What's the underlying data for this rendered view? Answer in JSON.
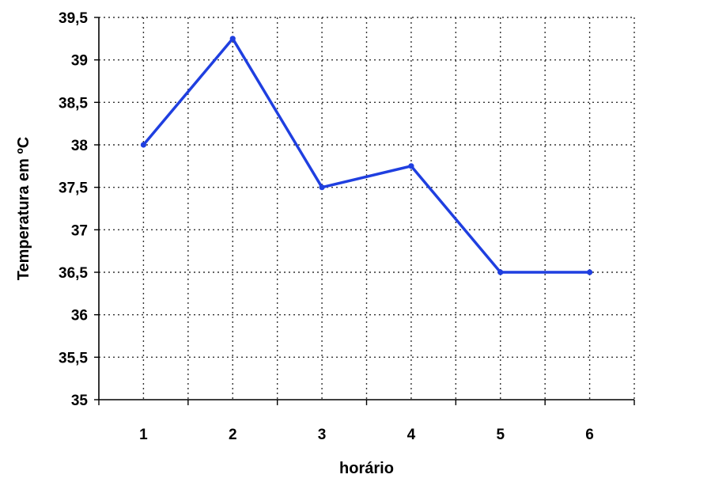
{
  "chart_data": {
    "type": "line",
    "title": "",
    "xlabel": "horário",
    "ylabel": "Temperatura em ºC",
    "x": [
      1,
      2,
      3,
      4,
      5,
      6
    ],
    "xtick_labels": [
      "1",
      "2",
      "3",
      "4",
      "5",
      "6"
    ],
    "ytick_labels": [
      "35",
      "35,5",
      "36",
      "36,5",
      "37",
      "37,5",
      "38",
      "38,5",
      "39",
      "39,5"
    ],
    "ylim": [
      35,
      39.5
    ],
    "grid": true,
    "grid_style": "dotted",
    "legend": "none",
    "series": [
      {
        "values": [
          38,
          39.25,
          37.5,
          37.75,
          36.5,
          36.5
        ],
        "color": "#1f3fe0"
      }
    ]
  }
}
